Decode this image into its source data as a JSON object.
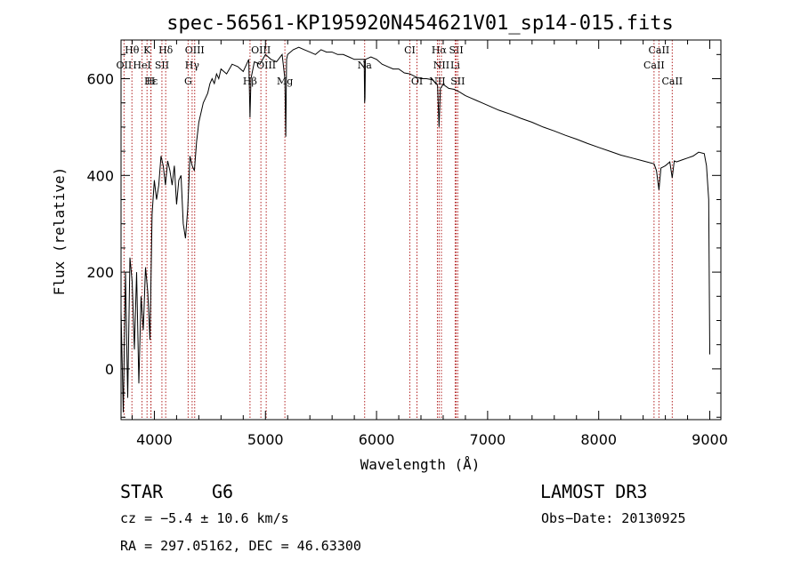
{
  "chart_data": {
    "type": "line",
    "title": "spec-56561-KP195920N454621V01_sp14-015.fits",
    "xlabel": "Wavelength (Å)",
    "ylabel": "Flux (relative)",
    "xlim": [
      3700,
      9100
    ],
    "ylim": [
      -105,
      680
    ],
    "xticks": [
      4000,
      5000,
      6000,
      7000,
      8000,
      9000
    ],
    "yticks": [
      0,
      200,
      400,
      600
    ],
    "series": [
      {
        "name": "spectrum",
        "x": [
          3700,
          3720,
          3740,
          3760,
          3780,
          3800,
          3820,
          3840,
          3860,
          3880,
          3900,
          3920,
          3940,
          3960,
          3980,
          4000,
          4020,
          4040,
          4060,
          4080,
          4100,
          4120,
          4140,
          4160,
          4180,
          4200,
          4220,
          4240,
          4260,
          4280,
          4300,
          4310,
          4320,
          4340,
          4360,
          4380,
          4400,
          4420,
          4440,
          4460,
          4480,
          4500,
          4520,
          4540,
          4560,
          4580,
          4600,
          4650,
          4700,
          4750,
          4800,
          4850,
          4861,
          4870,
          4900,
          4950,
          5000,
          5050,
          5100,
          5150,
          5175,
          5183,
          5190,
          5200,
          5250,
          5300,
          5350,
          5400,
          5450,
          5500,
          5550,
          5600,
          5650,
          5700,
          5750,
          5800,
          5850,
          5889,
          5893,
          5896,
          5900,
          5950,
          6000,
          6050,
          6100,
          6150,
          6200,
          6250,
          6300,
          6350,
          6400,
          6450,
          6500,
          6540,
          6550,
          6563,
          6575,
          6600,
          6650,
          6700,
          6750,
          6800,
          6850,
          6900,
          6950,
          7000,
          7100,
          7200,
          7300,
          7400,
          7500,
          7600,
          7700,
          7800,
          7900,
          8000,
          8100,
          8200,
          8300,
          8400,
          8498,
          8520,
          8542,
          8560,
          8600,
          8640,
          8662,
          8680,
          8700,
          8750,
          8800,
          8850,
          8900,
          8950,
          8970,
          8990,
          9000
        ],
        "values": [
          120,
          -90,
          200,
          -60,
          230,
          180,
          40,
          200,
          -30,
          150,
          80,
          210,
          160,
          60,
          320,
          390,
          350,
          380,
          440,
          420,
          380,
          430,
          410,
          380,
          420,
          340,
          390,
          400,
          300,
          270,
          330,
          380,
          440,
          420,
          410,
          470,
          510,
          530,
          550,
          560,
          570,
          590,
          600,
          590,
          610,
          600,
          620,
          610,
          630,
          625,
          615,
          640,
          520,
          600,
          635,
          630,
          650,
          640,
          635,
          650,
          600,
          480,
          640,
          650,
          660,
          665,
          660,
          655,
          650,
          660,
          655,
          655,
          650,
          650,
          645,
          640,
          640,
          640,
          550,
          560,
          640,
          645,
          640,
          630,
          625,
          620,
          620,
          612,
          610,
          604,
          600,
          600,
          598,
          590,
          585,
          500,
          580,
          588,
          580,
          578,
          572,
          565,
          560,
          555,
          550,
          545,
          535,
          527,
          518,
          510,
          500,
          492,
          483,
          475,
          466,
          458,
          450,
          442,
          436,
          430,
          424,
          410,
          370,
          415,
          420,
          428,
          395,
          430,
          428,
          432,
          436,
          440,
          448,
          445,
          420,
          350,
          30
        ]
      }
    ],
    "line_markers": [
      {
        "label": "Hθ",
        "x": 3798,
        "tier": 1
      },
      {
        "label": "K",
        "x": 3934,
        "tier": 1
      },
      {
        "label": "Hδ",
        "x": 4102,
        "tier": 1
      },
      {
        "label": "OIII",
        "x": 4363,
        "tier": 1
      },
      {
        "label": "OIII",
        "x": 4959,
        "tier": 1
      },
      {
        "label": "CI",
        "x": 6300,
        "tier": 1
      },
      {
        "label": "Hα",
        "x": 6563,
        "tier": 1
      },
      {
        "label": "SII",
        "x": 6717,
        "tier": 1
      },
      {
        "label": "CaII",
        "x": 8542,
        "tier": 1
      },
      {
        "label": "OII",
        "x": 3727,
        "tier": 2
      },
      {
        "label": "HeI",
        "x": 3889,
        "tier": 2
      },
      {
        "label": "SII",
        "x": 4068,
        "tier": 2
      },
      {
        "label": "Hγ",
        "x": 4340,
        "tier": 2
      },
      {
        "label": "OIII",
        "x": 5007,
        "tier": 2
      },
      {
        "label": "Na",
        "x": 5893,
        "tier": 2
      },
      {
        "label": "NII",
        "x": 6584,
        "tier": 2
      },
      {
        "label": "Li",
        "x": 6708,
        "tier": 2
      },
      {
        "label": "CaII",
        "x": 8498,
        "tier": 2
      },
      {
        "label": "Hε",
        "x": 3970,
        "tier": 3
      },
      {
        "label": "H",
        "x": 3968,
        "tier": 3
      },
      {
        "label": "G",
        "x": 4304,
        "tier": 3
      },
      {
        "label": "Hβ",
        "x": 4861,
        "tier": 3
      },
      {
        "label": "Mg",
        "x": 5175,
        "tier": 3
      },
      {
        "label": "OI",
        "x": 6364,
        "tier": 3
      },
      {
        "label": "NII",
        "x": 6548,
        "tier": 3
      },
      {
        "label": "SII",
        "x": 6731,
        "tier": 3
      },
      {
        "label": "CaII",
        "x": 8662,
        "tier": 3
      }
    ]
  },
  "info": {
    "object_type": "STAR",
    "subclass": "G6",
    "survey": "LAMOST DR3",
    "cz": "cz = −5.4 ± 10.6 km/s",
    "obs_date": "Obs−Date: 20130925",
    "coords": "RA = 297.05162, DEC =  46.63300"
  },
  "colors": {
    "spectrum": "#000000",
    "marker": "#b22222"
  }
}
